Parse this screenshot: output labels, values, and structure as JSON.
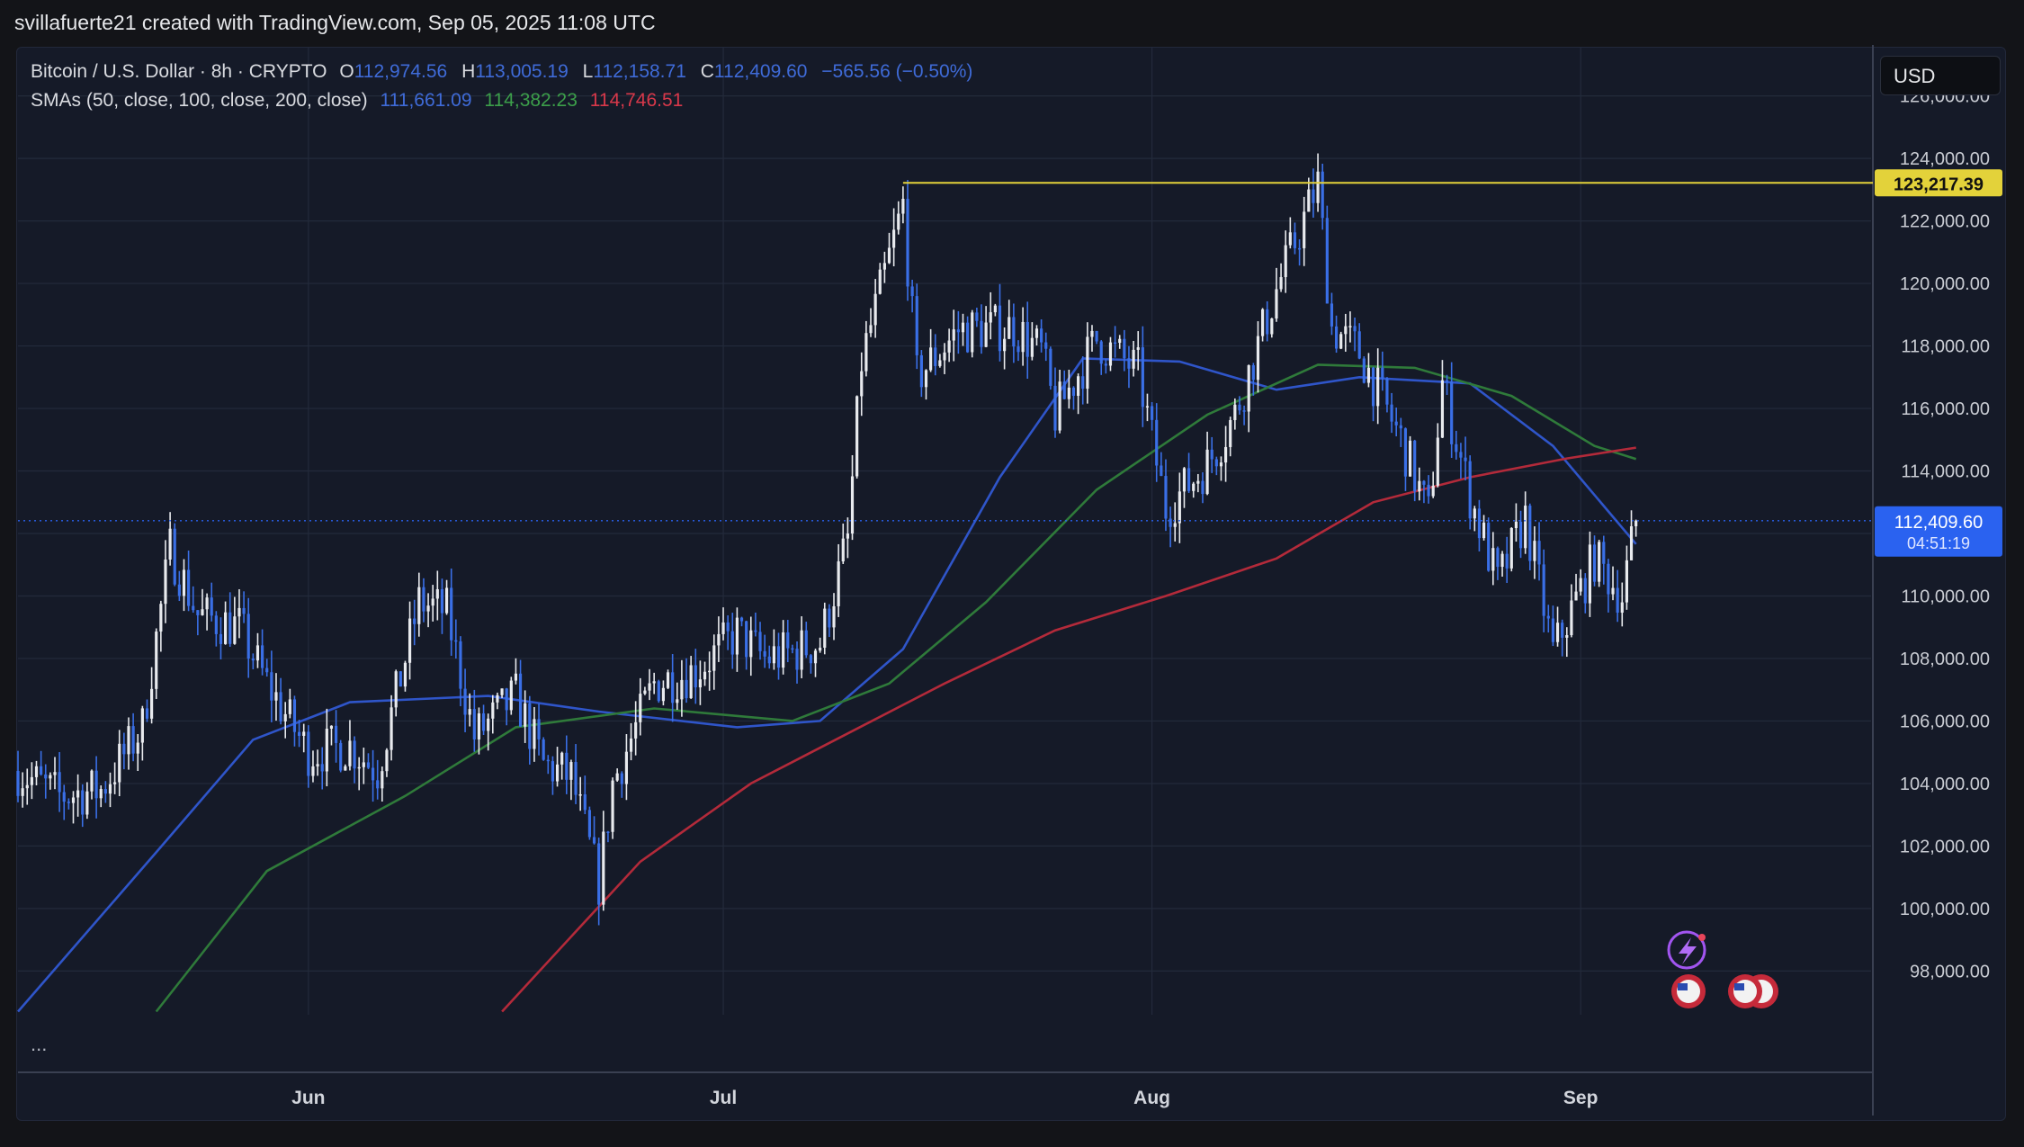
{
  "watermark": "svillafuerte21 created with TradingView.com, Sep 05, 2025 11:08 UTC",
  "legend": {
    "symbol": "Bitcoin / U.S. Dollar · 8h · CRYPTO",
    "open_key": "O",
    "open": "112,974.56",
    "high_key": "H",
    "high": "113,005.19",
    "low_key": "L",
    "low": "112,158.71",
    "close_key": "C",
    "close": "112,409.60",
    "change": "−565.56 (−0.50%)",
    "sma_label": "SMAs (50, close, 100, close, 200, close)",
    "sma50": "111,661.09",
    "sma100": "114,382.23",
    "sma200": "114,746.51"
  },
  "currency": "USD",
  "more": "...",
  "colors": {
    "background": "#151a28",
    "grid": "#232a3b",
    "candle_up": "#e8eaee",
    "candle_down": "#3a6fe6",
    "sma50": "#2f55c9",
    "sma100": "#2f7a3a",
    "sma200": "#b32a3a",
    "resistance": "#e3d23a",
    "price_badge": "#2a62f0"
  },
  "chart_data": {
    "type": "candlestick",
    "interval": "8h",
    "y_ticks": [
      98000,
      100000,
      102000,
      104000,
      106000,
      108000,
      110000,
      112000,
      114000,
      116000,
      118000,
      120000,
      122000,
      124000,
      126000
    ],
    "y_tick_labels": [
      "98,000.00",
      "100,000.00",
      "102,000.00",
      "104,000.00",
      "106,000.00",
      "108,000.00",
      "110,000.00",
      "112,000.00",
      "114,000.00",
      "116,000.00",
      "118,000.00",
      "120,000.00",
      "122,000.00",
      "124,000.00",
      "126,000.00"
    ],
    "ylim": [
      96600,
      127400
    ],
    "x_labels": [
      {
        "label": "Jun",
        "date": "2025-06-01"
      },
      {
        "label": "Jul",
        "date": "2025-07-01"
      },
      {
        "label": "Aug",
        "date": "2025-08-01"
      },
      {
        "label": "Sep",
        "date": "2025-09-01"
      }
    ],
    "x_range": [
      "2025-05-11",
      "2025-09-22"
    ],
    "last_date": "2025-09-05",
    "resistance": {
      "value": 123217.39,
      "label": "123,217.39",
      "from": "2025-07-14"
    },
    "last_price": {
      "value": 112409.6,
      "label": "112,409.60",
      "countdown": "04:51:19"
    },
    "close_path": [
      {
        "date": "2025-05-11",
        "price": 104400
      },
      {
        "date": "2025-05-14",
        "price": 103600
      },
      {
        "date": "2025-05-17",
        "price": 103800
      },
      {
        "date": "2025-05-20",
        "price": 105800
      },
      {
        "date": "2025-05-22",
        "price": 111500
      },
      {
        "date": "2025-05-24",
        "price": 109400
      },
      {
        "date": "2025-05-27",
        "price": 109000
      },
      {
        "date": "2025-05-29",
        "price": 107200
      },
      {
        "date": "2025-06-01",
        "price": 105000
      },
      {
        "date": "2025-06-04",
        "price": 105200
      },
      {
        "date": "2025-06-06",
        "price": 104400
      },
      {
        "date": "2025-06-09",
        "price": 109800
      },
      {
        "date": "2025-06-11",
        "price": 109500
      },
      {
        "date": "2025-06-13",
        "price": 105500
      },
      {
        "date": "2025-06-16",
        "price": 106800
      },
      {
        "date": "2025-06-18",
        "price": 104600
      },
      {
        "date": "2025-06-20",
        "price": 104200
      },
      {
        "date": "2025-06-22",
        "price": 100800
      },
      {
        "date": "2025-06-23",
        "price": 104000
      },
      {
        "date": "2025-06-26",
        "price": 107200
      },
      {
        "date": "2025-06-29",
        "price": 107600
      },
      {
        "date": "2025-07-02",
        "price": 108800
      },
      {
        "date": "2025-07-04",
        "price": 108000
      },
      {
        "date": "2025-07-06",
        "price": 108200
      },
      {
        "date": "2025-07-08",
        "price": 108500
      },
      {
        "date": "2025-07-10",
        "price": 111800
      },
      {
        "date": "2025-07-11",
        "price": 117500
      },
      {
        "date": "2025-07-14",
        "price": 122500
      },
      {
        "date": "2025-07-15",
        "price": 117000
      },
      {
        "date": "2025-07-18",
        "price": 118500
      },
      {
        "date": "2025-07-22",
        "price": 118600
      },
      {
        "date": "2025-07-24",
        "price": 117800
      },
      {
        "date": "2025-07-25",
        "price": 115800
      },
      {
        "date": "2025-07-28",
        "price": 118200
      },
      {
        "date": "2025-07-31",
        "price": 117200
      },
      {
        "date": "2025-08-02",
        "price": 112800
      },
      {
        "date": "2025-08-05",
        "price": 114200
      },
      {
        "date": "2025-08-07",
        "price": 115800
      },
      {
        "date": "2025-08-10",
        "price": 119800
      },
      {
        "date": "2025-08-13",
        "price": 123200
      },
      {
        "date": "2025-08-14",
        "price": 118600
      },
      {
        "date": "2025-08-16",
        "price": 117800
      },
      {
        "date": "2025-08-19",
        "price": 115000
      },
      {
        "date": "2025-08-21",
        "price": 112600
      },
      {
        "date": "2025-08-22",
        "price": 116800
      },
      {
        "date": "2025-08-24",
        "price": 113200
      },
      {
        "date": "2025-08-26",
        "price": 110400
      },
      {
        "date": "2025-08-28",
        "price": 112500
      },
      {
        "date": "2025-08-30",
        "price": 108200
      },
      {
        "date": "2025-09-02",
        "price": 111200
      },
      {
        "date": "2025-09-04",
        "price": 110000
      },
      {
        "date": "2025-09-05",
        "price": 112409.6
      }
    ],
    "series": [
      {
        "name": "SMA 50",
        "values": [
          {
            "date": "2025-05-11",
            "price": 96700
          },
          {
            "date": "2025-05-21",
            "price": 101800
          },
          {
            "date": "2025-05-28",
            "price": 105400
          },
          {
            "date": "2025-06-04",
            "price": 106600
          },
          {
            "date": "2025-06-14",
            "price": 106800
          },
          {
            "date": "2025-06-22",
            "price": 106300
          },
          {
            "date": "2025-07-02",
            "price": 105800
          },
          {
            "date": "2025-07-08",
            "price": 106000
          },
          {
            "date": "2025-07-14",
            "price": 108300
          },
          {
            "date": "2025-07-21",
            "price": 113800
          },
          {
            "date": "2025-07-27",
            "price": 117600
          },
          {
            "date": "2025-08-03",
            "price": 117500
          },
          {
            "date": "2025-08-10",
            "price": 116600
          },
          {
            "date": "2025-08-16",
            "price": 117000
          },
          {
            "date": "2025-08-24",
            "price": 116800
          },
          {
            "date": "2025-08-30",
            "price": 114800
          },
          {
            "date": "2025-09-05",
            "price": 111661.09
          }
        ]
      },
      {
        "name": "SMA 100",
        "values": [
          {
            "date": "2025-05-21",
            "price": 96700
          },
          {
            "date": "2025-05-29",
            "price": 101200
          },
          {
            "date": "2025-06-08",
            "price": 103600
          },
          {
            "date": "2025-06-16",
            "price": 105800
          },
          {
            "date": "2025-06-26",
            "price": 106400
          },
          {
            "date": "2025-07-06",
            "price": 106000
          },
          {
            "date": "2025-07-13",
            "price": 107200
          },
          {
            "date": "2025-07-20",
            "price": 109800
          },
          {
            "date": "2025-07-28",
            "price": 113400
          },
          {
            "date": "2025-08-05",
            "price": 115800
          },
          {
            "date": "2025-08-13",
            "price": 117400
          },
          {
            "date": "2025-08-20",
            "price": 117300
          },
          {
            "date": "2025-08-27",
            "price": 116400
          },
          {
            "date": "2025-09-02",
            "price": 114800
          },
          {
            "date": "2025-09-05",
            "price": 114382.23
          }
        ]
      },
      {
        "name": "SMA 200",
        "values": [
          {
            "date": "2025-06-15",
            "price": 96700
          },
          {
            "date": "2025-06-25",
            "price": 101500
          },
          {
            "date": "2025-07-03",
            "price": 104000
          },
          {
            "date": "2025-07-10",
            "price": 105600
          },
          {
            "date": "2025-07-17",
            "price": 107200
          },
          {
            "date": "2025-07-25",
            "price": 108900
          },
          {
            "date": "2025-08-02",
            "price": 110000
          },
          {
            "date": "2025-08-10",
            "price": 111200
          },
          {
            "date": "2025-08-17",
            "price": 113000
          },
          {
            "date": "2025-08-24",
            "price": 113800
          },
          {
            "date": "2025-08-31",
            "price": 114400
          },
          {
            "date": "2025-09-05",
            "price": 114746.51
          }
        ]
      }
    ]
  }
}
